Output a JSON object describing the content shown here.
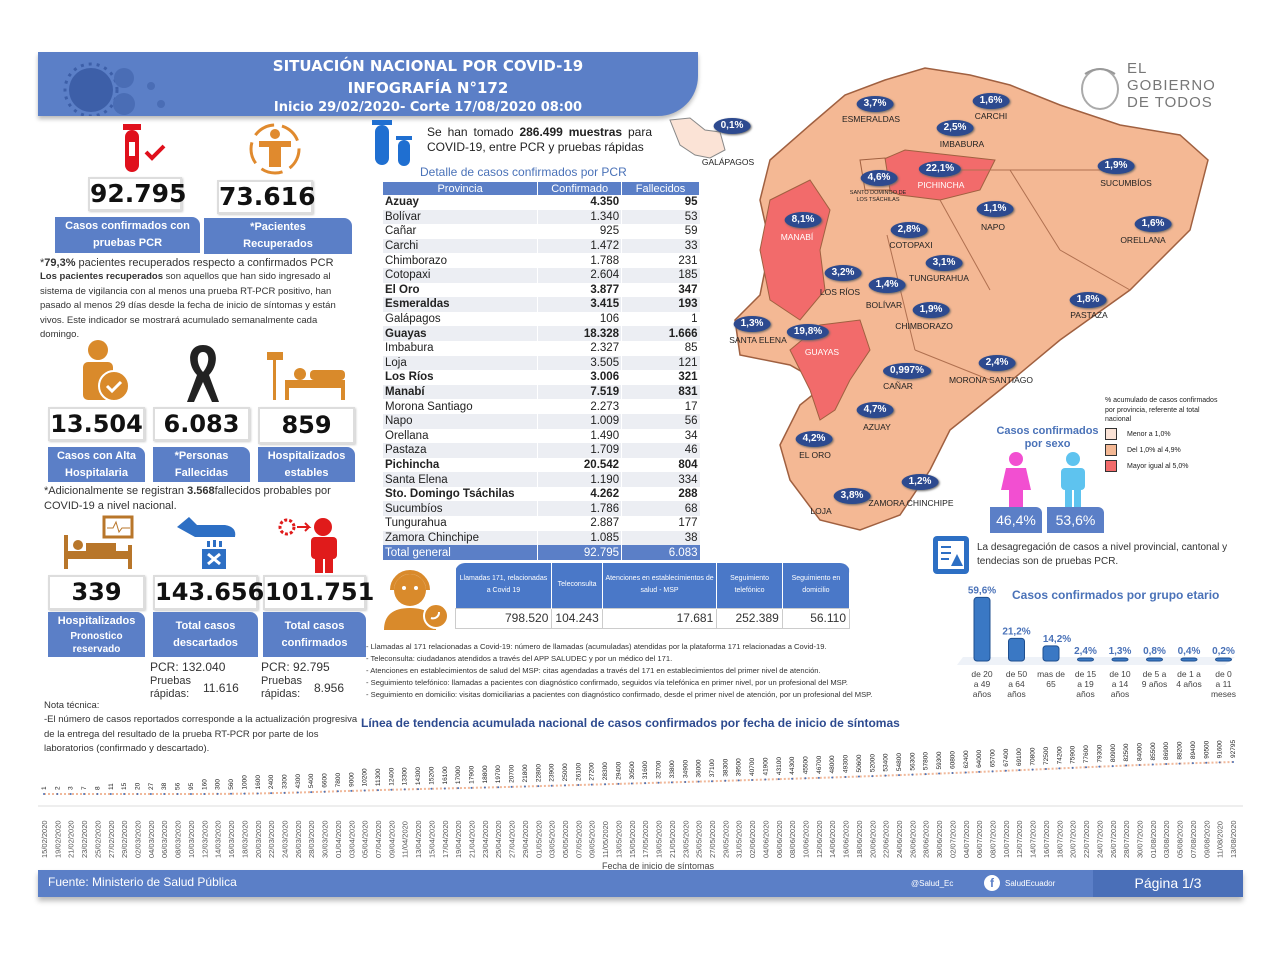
{
  "header": {
    "title": "SITUACIÓN NACIONAL POR  COVID-19",
    "subtitle": "INFOGRAFÍA N°172",
    "period": "Inicio 29/02/2020- Corte 17/08/2020 08:00"
  },
  "logo": {
    "line1": "EL",
    "line2": "GOBIERNO",
    "line3": "DE TODOS"
  },
  "stats": {
    "confirmed_pcr": {
      "value": "92.795",
      "label1": "Casos confirmados con",
      "label2": "pruebas PCR"
    },
    "recovered": {
      "value": "73.616",
      "label1": "*Pacientes",
      "label2": "Recuperados"
    },
    "discharged": {
      "value": "13.504",
      "label1": "Casos con Alta",
      "label2": "Hospitalaria"
    },
    "deceased": {
      "value": "6.083",
      "label1": "*Personas",
      "label2": "Fallecidas"
    },
    "hosp_stable": {
      "value": "859",
      "label1": "Hospitalizados",
      "label2": "estables"
    },
    "hosp_reserved": {
      "value": "339",
      "label1": "Hospitalizados",
      "label2": "Pronostico",
      "label3": "reservado"
    },
    "discarded": {
      "value": "143.656",
      "label1": "Total casos",
      "label2": "descartados",
      "pcr_label": "PCR:",
      "pcr": "132.040",
      "rapid_label": "Pruebas rápidas:",
      "rapid": "11.616"
    },
    "total_confirmed": {
      "value": "101.751",
      "label1": "Total casos",
      "label2": "confirmados",
      "pcr_label": "PCR:",
      "pcr": "92.795",
      "rapid_label": "Pruebas rápidas:",
      "rapid": "8.956"
    }
  },
  "recovered_note": {
    "pct": "79,3%",
    "line1": " pacientes recuperados respecto a confirmados PCR",
    "bold": "Los pacientes recuperados",
    "text": " son aquellos que han sido ingresado al sistema de vigilancia con al menos una prueba RT-PCR positivo, han pasado al menos 29 días desde la fecha de inicio de síntomas y están vivos. Este indicador se mostrará acumulado semanalmente cada domingo."
  },
  "probable_note": {
    "pre": "*Adicionalmente se registran ",
    "value": "3.568",
    "post": "fallecidos probables por COVID-19 a nivel nacional."
  },
  "tech_note": {
    "title": "Nota técnica:",
    "text": "-El número de casos reportados corresponde a la actualización progresiva de la entrega del resultado de la prueba RT-PCR por parte de los laboratorios (confirmado y descartado)."
  },
  "samples": {
    "pre": "Se han tomado ",
    "value": "286.499  muestras",
    "post": " para COVID-19, entre PCR y pruebas rápidas"
  },
  "province_table": {
    "title": "Detalle de casos confirmados por PCR",
    "headers": [
      "Provincia",
      "Confirmado",
      "Fallecidos"
    ],
    "rows": [
      {
        "p": "Azuay",
        "c": "4.350",
        "f": "95",
        "bold": true
      },
      {
        "p": "Bolívar",
        "c": "1.340",
        "f": "53"
      },
      {
        "p": "Cañar",
        "c": "925",
        "f": "59"
      },
      {
        "p": "Carchi",
        "c": "1.472",
        "f": "33"
      },
      {
        "p": "Chimborazo",
        "c": "1.788",
        "f": "231"
      },
      {
        "p": "Cotopaxi",
        "c": "2.604",
        "f": "185"
      },
      {
        "p": "El Oro",
        "c": "3.877",
        "f": "347",
        "bold": true
      },
      {
        "p": "Esmeraldas",
        "c": "3.415",
        "f": "193",
        "bold": true
      },
      {
        "p": "Galápagos",
        "c": "106",
        "f": "1"
      },
      {
        "p": "Guayas",
        "c": "18.328",
        "f": "1.666",
        "bold": true
      },
      {
        "p": "Imbabura",
        "c": "2.327",
        "f": "85"
      },
      {
        "p": "Loja",
        "c": "3.505",
        "f": "121"
      },
      {
        "p": "Los Ríos",
        "c": "3.006",
        "f": "321",
        "bold": true
      },
      {
        "p": "Manabí",
        "c": "7.519",
        "f": "831",
        "bold": true
      },
      {
        "p": "Morona Santiago",
        "c": "2.273",
        "f": "17"
      },
      {
        "p": "Napo",
        "c": "1.009",
        "f": "56"
      },
      {
        "p": "Orellana",
        "c": "1.490",
        "f": "34"
      },
      {
        "p": "Pastaza",
        "c": "1.709",
        "f": "46"
      },
      {
        "p": "Pichincha",
        "c": "20.542",
        "f": "804",
        "bold": true
      },
      {
        "p": "Santa Elena",
        "c": "1.190",
        "f": "334"
      },
      {
        "p": "Sto. Domingo Tsáchilas",
        "c": "4.262",
        "f": "288",
        "bold": true
      },
      {
        "p": "Sucumbíos",
        "c": "1.786",
        "f": "68"
      },
      {
        "p": "Tungurahua",
        "c": "2.887",
        "f": "177"
      },
      {
        "p": "Zamora Chinchipe",
        "c": "1.085",
        "f": "38"
      }
    ],
    "total": {
      "p": "Total general",
      "c": "92.795",
      "f": "6.083"
    }
  },
  "calls": {
    "headers": [
      "Llamadas 171, relacionadas a Covid 19",
      "Teleconsulta",
      "Atenciones en establecimientos de salud - MSP",
      "Seguimiento telefónico",
      "Seguimiento en domicilio"
    ],
    "values": [
      "798.520",
      "104.243",
      "17.681",
      "252.389",
      "56.110"
    ],
    "notes": [
      "- Llamadas al 171 relacionadas a Covid-19: número de llamadas (acumuladas) atendidas por la plataforma 171 relacionadas a Covid-19.",
      "- Teleconsulta: ciudadanos atendidos a través del APP SALUDEC y por un médico del 171.",
      "- Atenciones en establecimientos de salud del MSP:  citas agendadas a través del 171 en establecimientos del primer nivel de atención.",
      "- Seguimiento telefónico: llamadas a pacientes con diagnóstico confirmado, seguidos vía telefónica en primer nivel, por un profesional del MSP.",
      "- Seguimiento en domicilio: visitas domiciliarias a pacientes con diagnóstico confirmado, desde el primer nivel de atención, por un profesional del MSP."
    ]
  },
  "map": {
    "provinces": [
      {
        "name": "GALÁPAGOS",
        "pct": "0,1%"
      },
      {
        "name": "ESMERALDAS",
        "pct": "3,7%"
      },
      {
        "name": "CARCHI",
        "pct": "1,6%"
      },
      {
        "name": "IMBABURA",
        "pct": "2,5%"
      },
      {
        "name": "PICHINCHA",
        "pct": "22,1%"
      },
      {
        "name": "SANTO DOMINGO DE LOS TSÁCHILAS",
        "pct": "4,6%"
      },
      {
        "name": "SUCUMBÍOS",
        "pct": "1,9%"
      },
      {
        "name": "MANABÍ",
        "pct": "8,1%"
      },
      {
        "name": "COTOPAXI",
        "pct": "2,8%"
      },
      {
        "name": "NAPO",
        "pct": "1,1%"
      },
      {
        "name": "ORELLANA",
        "pct": "1,6%"
      },
      {
        "name": "LOS RÍOS",
        "pct": "3,2%"
      },
      {
        "name": "TUNGURAHUA",
        "pct": "3,1%"
      },
      {
        "name": "BOLÍVAR",
        "pct": "1,4%"
      },
      {
        "name": "CHIMBORAZO",
        "pct": "1,9%"
      },
      {
        "name": "PASTAZA",
        "pct": "1,8%"
      },
      {
        "name": "SANTA ELENA",
        "pct": "1,3%"
      },
      {
        "name": "GUAYAS",
        "pct": "19,8%"
      },
      {
        "name": "CAÑAR",
        "pct": "0,997%"
      },
      {
        "name": "MORONA SANTIAGO",
        "pct": "2,4%"
      },
      {
        "name": "AZUAY",
        "pct": "4,7%"
      },
      {
        "name": "EL ORO",
        "pct": "4,2%"
      },
      {
        "name": "ZAMORA CHINCHIPE",
        "pct": "1,2%"
      },
      {
        "name": "LOJA",
        "pct": "3,8%"
      }
    ],
    "legend": {
      "title": "% acumulado de casos confirmados por provincia, referente al total nacional",
      "items": [
        {
          "label": "Menor a 1,0%",
          "color": "#fbe3d6"
        },
        {
          "label": "Del 1,0% al 4,9%",
          "color": "#f4b894"
        },
        {
          "label": "Mayor igual al 5,0%",
          "color": "#f26b6b"
        }
      ]
    }
  },
  "sex": {
    "title": "Casos confirmados por sexo",
    "female": "46,4%",
    "male": "53,6%"
  },
  "disaggregation_note": "La desagregación de casos a nivel provincial, cantonal y tendecias son  de pruebas PCR.",
  "chart_data": [
    {
      "type": "bar",
      "title": "Casos confirmados por grupo etario",
      "categories": [
        "de 20 a 49 años",
        "de 50 a 64 años",
        "mas de 65",
        "de 15 a 19 años",
        "de 10 a 14 años",
        "de 5 a 9 años",
        "de 1 a 4 años",
        "de 0 a 11 meses"
      ],
      "values": [
        59.6,
        21.2,
        14.2,
        2.4,
        1.3,
        0.8,
        0.4,
        0.2
      ],
      "labels": [
        "59,6%",
        "21,2%",
        "14,2%",
        "2,4%",
        "1,3%",
        "0,8%",
        "0,4%",
        "0,2%"
      ],
      "ylim": [
        0,
        60
      ]
    },
    {
      "type": "line",
      "title": "Línea de tendencia acumulada nacional de casos confirmados por fecha de inicio de síntomas",
      "xlabel": "Fecha de inicio de síntomas",
      "ylabel": "",
      "ylim": [
        0,
        350000
      ],
      "x": [
        "15/02/2020",
        "19/02/2020",
        "21/02/2020",
        "23/02/2020",
        "25/02/2020",
        "27/02/2020",
        "29/02/2020",
        "02/03/2020",
        "04/03/2020",
        "06/03/2020",
        "08/03/2020",
        "10/03/2020",
        "12/03/2020",
        "14/03/2020",
        "16/03/2020",
        "18/03/2020",
        "20/03/2020",
        "22/03/2020",
        "24/03/2020",
        "26/03/2020",
        "28/03/2020",
        "30/03/2020",
        "01/04/2020",
        "03/04/2020",
        "05/04/2020",
        "07/04/2020",
        "09/04/2020",
        "11/04/2020",
        "13/04/2020",
        "15/04/2020",
        "17/04/2020",
        "19/04/2020",
        "21/04/2020",
        "23/04/2020",
        "25/04/2020",
        "27/04/2020",
        "29/04/2020",
        "01/05/2020",
        "03/05/2020",
        "05/05/2020",
        "07/05/2020",
        "09/05/2020",
        "11/05/2020",
        "13/05/2020",
        "15/05/2020",
        "17/05/2020",
        "19/05/2020",
        "21/05/2020",
        "23/05/2020",
        "25/05/2020",
        "27/05/2020",
        "29/05/2020",
        "31/05/2020",
        "02/06/2020",
        "04/06/2020",
        "06/06/2020",
        "08/06/2020",
        "10/06/2020",
        "12/06/2020",
        "14/06/2020",
        "16/06/2020",
        "18/06/2020",
        "20/06/2020",
        "22/06/2020",
        "24/06/2020",
        "26/06/2020",
        "28/06/2020",
        "30/06/2020",
        "02/07/2020",
        "04/07/2020",
        "06/07/2020",
        "08/07/2020",
        "10/07/2020",
        "12/07/2020",
        "14/07/2020",
        "16/07/2020",
        "18/07/2020",
        "20/07/2020",
        "22/07/2020",
        "24/07/2020",
        "26/07/2020",
        "28/07/2020",
        "30/07/2020",
        "01/08/2020",
        "03/08/2020",
        "05/08/2020",
        "07/08/2020",
        "09/08/2020",
        "11/08/2020",
        "13/08/2020"
      ],
      "y": [
        1,
        2,
        3,
        7,
        8,
        11,
        15,
        20,
        27,
        38,
        56,
        95,
        160,
        300,
        560,
        1000,
        1600,
        2400,
        3300,
        4300,
        5400,
        6600,
        7800,
        9000,
        10200,
        11300,
        12400,
        13300,
        14300,
        15200,
        16100,
        17000,
        17900,
        18800,
        19700,
        20700,
        21800,
        22800,
        23900,
        25000,
        26100,
        27200,
        28300,
        29400,
        30500,
        31600,
        32700,
        33800,
        34900,
        36000,
        37100,
        38300,
        39500,
        40700,
        41900,
        43100,
        44300,
        45500,
        46700,
        48000,
        49300,
        50600,
        52000,
        53400,
        54800,
        56300,
        57800,
        59300,
        60800,
        62400,
        64000,
        65700,
        67400,
        69100,
        70800,
        72500,
        74200,
        75900,
        77600,
        79300,
        80900,
        82500,
        84000,
        85500,
        86900,
        88200,
        89400,
        90500,
        91600,
        92795
      ]
    }
  ],
  "footer": {
    "source_label": "Fuente: ",
    "source": "Ministerio de Salud Pública",
    "twitter": "@Salud_Ec",
    "facebook": "SaludEcuador",
    "page": "Página 1/3"
  }
}
